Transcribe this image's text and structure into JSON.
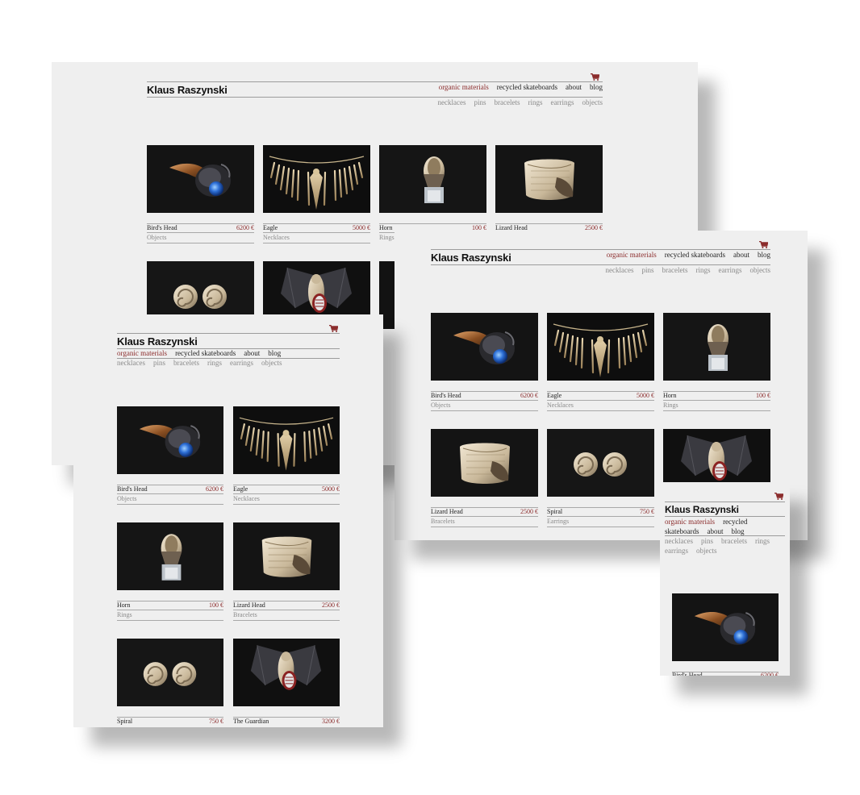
{
  "brand": "Klaus Raszynski",
  "nav_items": [
    "organic materials",
    "recycled skateboards",
    "about",
    "blog"
  ],
  "nav_active": "organic materials",
  "categories": [
    "necklaces",
    "pins",
    "bracelets",
    "rings",
    "earrings",
    "objects"
  ],
  "products": [
    {
      "name": "Bird's Head",
      "price": "6200 €",
      "category": "Objects"
    },
    {
      "name": "Eagle",
      "price": "5000 €",
      "category": "Necklaces"
    },
    {
      "name": "Horn",
      "price": "100 €",
      "category": "Rings"
    },
    {
      "name": "Lizard Head",
      "price": "2500 €",
      "category": "Bracelets"
    },
    {
      "name": "Spiral",
      "price": "750 €",
      "category": "Earrings"
    },
    {
      "name": "The Guardian",
      "price": "3200 €",
      "category": ""
    }
  ],
  "mobile_nav": {
    "line1": "organic materials",
    "line1b": "recycled",
    "line2a": "skateboards",
    "line2b": "about",
    "line2c": "blog"
  },
  "colors": {
    "accent": "#8b2c2c",
    "panel": "#efefef",
    "thumb_bg": "#121212",
    "text": "#222222",
    "muted": "#8a8a8a"
  }
}
